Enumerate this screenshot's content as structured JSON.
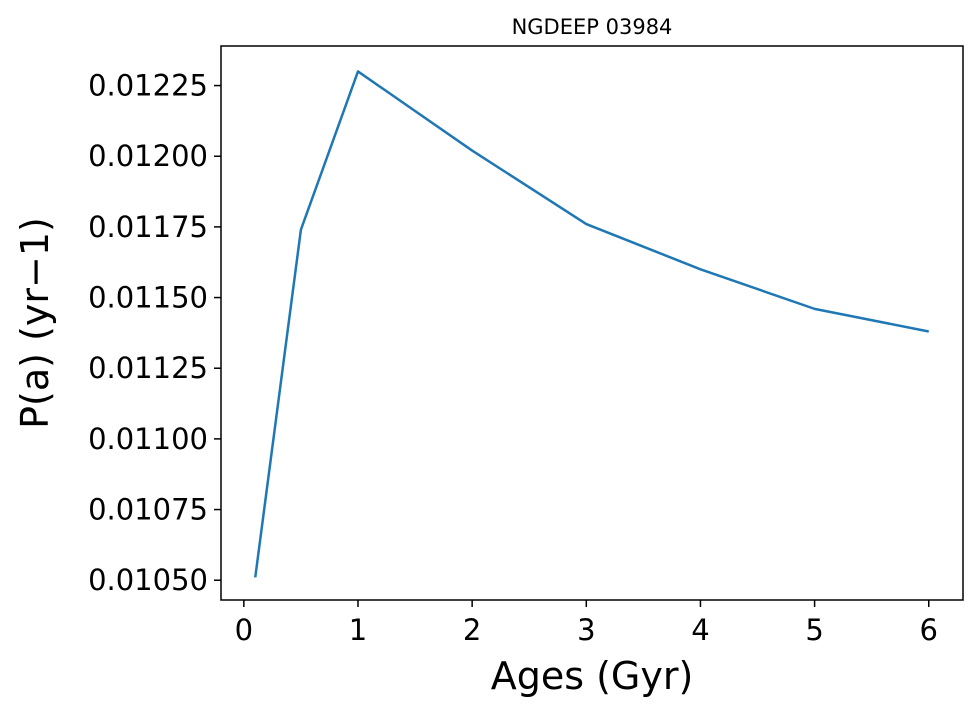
{
  "chart_data": {
    "type": "line",
    "title": "NGDEEP 03984",
    "xlabel": "Ages (Gyr)",
    "ylabel": "P(a) (yr−1)",
    "xlim": [
      -0.2,
      6.3
    ],
    "ylim": [
      0.01043,
      0.01239
    ],
    "xticks": [
      0,
      1,
      2,
      3,
      4,
      5,
      6
    ],
    "xtick_labels": [
      "0",
      "1",
      "2",
      "3",
      "4",
      "5",
      "6"
    ],
    "yticks": [
      0.0105,
      0.01075,
      0.011,
      0.01125,
      0.0115,
      0.01175,
      0.012,
      0.01225
    ],
    "ytick_labels": [
      "0.01050",
      "0.01075",
      "0.01100",
      "0.01125",
      "0.01150",
      "0.01175",
      "0.01200",
      "0.01225"
    ],
    "grid": false,
    "series": [
      {
        "color": "#1f77b4",
        "x": [
          0.1,
          0.5,
          1,
          2,
          3,
          4,
          5,
          6
        ],
        "y": [
          0.01051,
          0.01174,
          0.0123,
          0.01202,
          0.01176,
          0.0116,
          0.01146,
          0.01138
        ]
      }
    ]
  }
}
